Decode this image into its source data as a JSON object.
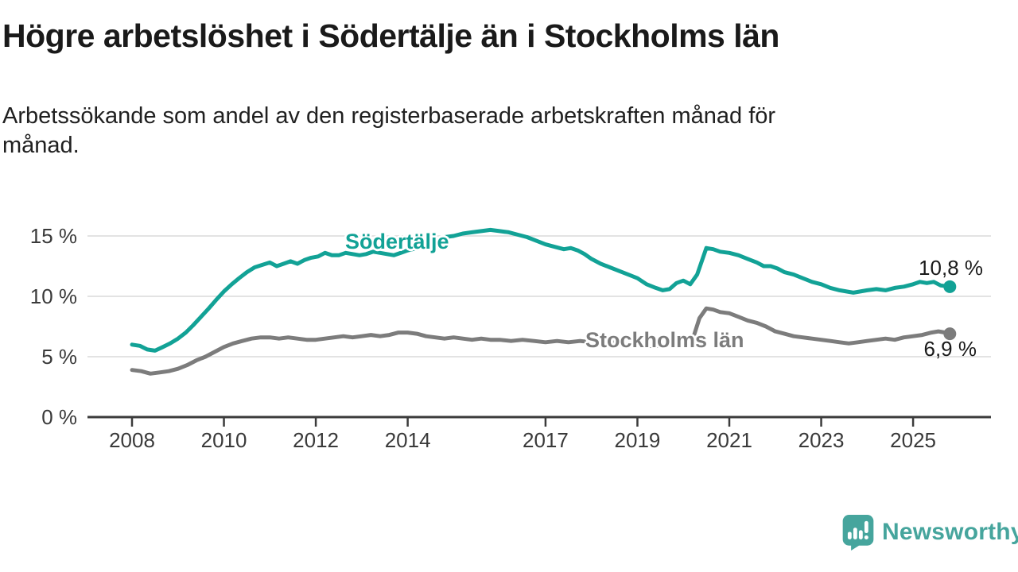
{
  "branding": {
    "name": "Newsworthy",
    "logo_icon": "speech-bubble-bar-chart-icon",
    "color": "#46a59d"
  },
  "chart_data": {
    "type": "line",
    "title": "Högre arbetslöshet i Södertälje än i Stockholms län",
    "subtitle_lines": [
      "Arbetssökande som andel av den registerbaserade arbetskraften månad för",
      "månad."
    ],
    "unit": "%",
    "grid": true,
    "legend": "inline-labels",
    "x_axis": {
      "range": [
        2007.05,
        2026.7
      ],
      "ticks": [
        {
          "value": 2008,
          "label": "2008"
        },
        {
          "value": 2010,
          "label": "2010"
        },
        {
          "value": 2012,
          "label": "2012"
        },
        {
          "value": 2014,
          "label": "2014"
        },
        {
          "value": 2017,
          "label": "2017"
        },
        {
          "value": 2019,
          "label": "2019"
        },
        {
          "value": 2021,
          "label": "2021"
        },
        {
          "value": 2023,
          "label": "2023"
        },
        {
          "value": 2025,
          "label": "2025"
        }
      ]
    },
    "y_axis": {
      "range": [
        0,
        16.5
      ],
      "ticks": [
        {
          "value": 0,
          "label": "0 %"
        },
        {
          "value": 5,
          "label": "5 %"
        },
        {
          "value": 10,
          "label": "10 %"
        },
        {
          "value": 15,
          "label": "15 %"
        }
      ]
    },
    "series": [
      {
        "name": "Södertälje",
        "color": "#12a296",
        "end_value": 10.8,
        "end_label": "10,8 %",
        "points": [
          [
            2008.0,
            6.0
          ],
          [
            2008.17,
            5.9
          ],
          [
            2008.33,
            5.6
          ],
          [
            2008.5,
            5.5
          ],
          [
            2008.67,
            5.8
          ],
          [
            2008.83,
            6.1
          ],
          [
            2009.0,
            6.5
          ],
          [
            2009.17,
            7.0
          ],
          [
            2009.33,
            7.6
          ],
          [
            2009.5,
            8.3
          ],
          [
            2009.67,
            9.0
          ],
          [
            2009.83,
            9.7
          ],
          [
            2010.0,
            10.4
          ],
          [
            2010.17,
            11.0
          ],
          [
            2010.33,
            11.5
          ],
          [
            2010.5,
            12.0
          ],
          [
            2010.67,
            12.4
          ],
          [
            2010.83,
            12.6
          ],
          [
            2011.0,
            12.8
          ],
          [
            2011.15,
            12.5
          ],
          [
            2011.3,
            12.7
          ],
          [
            2011.45,
            12.9
          ],
          [
            2011.6,
            12.7
          ],
          [
            2011.75,
            13.0
          ],
          [
            2011.9,
            13.2
          ],
          [
            2012.05,
            13.3
          ],
          [
            2012.2,
            13.6
          ],
          [
            2012.35,
            13.4
          ],
          [
            2012.5,
            13.4
          ],
          [
            2012.65,
            13.6
          ],
          [
            2012.8,
            13.5
          ],
          [
            2012.95,
            13.4
          ],
          [
            2013.1,
            13.5
          ],
          [
            2013.25,
            13.7
          ],
          [
            2013.4,
            13.6
          ],
          [
            2013.55,
            13.5
          ],
          [
            2013.7,
            13.4
          ],
          [
            2013.85,
            13.6
          ],
          [
            2014.0,
            13.8
          ],
          [
            2014.2,
            14.0
          ],
          [
            2014.4,
            14.3
          ],
          [
            2014.6,
            14.6
          ],
          [
            2014.8,
            14.9
          ],
          [
            2015.0,
            15.0
          ],
          [
            2015.2,
            15.2
          ],
          [
            2015.4,
            15.3
          ],
          [
            2015.6,
            15.4
          ],
          [
            2015.8,
            15.5
          ],
          [
            2016.0,
            15.4
          ],
          [
            2016.2,
            15.3
          ],
          [
            2016.4,
            15.1
          ],
          [
            2016.6,
            14.9
          ],
          [
            2016.8,
            14.6
          ],
          [
            2017.0,
            14.3
          ],
          [
            2017.2,
            14.1
          ],
          [
            2017.4,
            13.9
          ],
          [
            2017.55,
            14.0
          ],
          [
            2017.7,
            13.8
          ],
          [
            2017.85,
            13.5
          ],
          [
            2018.0,
            13.1
          ],
          [
            2018.2,
            12.7
          ],
          [
            2018.4,
            12.4
          ],
          [
            2018.6,
            12.1
          ],
          [
            2018.8,
            11.8
          ],
          [
            2019.0,
            11.5
          ],
          [
            2019.2,
            11.0
          ],
          [
            2019.4,
            10.7
          ],
          [
            2019.55,
            10.5
          ],
          [
            2019.7,
            10.6
          ],
          [
            2019.85,
            11.1
          ],
          [
            2020.0,
            11.3
          ],
          [
            2020.15,
            11.0
          ],
          [
            2020.3,
            11.8
          ],
          [
            2020.5,
            14.0
          ],
          [
            2020.65,
            13.9
          ],
          [
            2020.8,
            13.7
          ],
          [
            2021.0,
            13.6
          ],
          [
            2021.2,
            13.4
          ],
          [
            2021.4,
            13.1
          ],
          [
            2021.6,
            12.8
          ],
          [
            2021.75,
            12.5
          ],
          [
            2021.9,
            12.5
          ],
          [
            2022.05,
            12.3
          ],
          [
            2022.2,
            12.0
          ],
          [
            2022.4,
            11.8
          ],
          [
            2022.6,
            11.5
          ],
          [
            2022.8,
            11.2
          ],
          [
            2023.0,
            11.0
          ],
          [
            2023.2,
            10.7
          ],
          [
            2023.4,
            10.5
          ],
          [
            2023.55,
            10.4
          ],
          [
            2023.7,
            10.3
          ],
          [
            2023.85,
            10.4
          ],
          [
            2024.0,
            10.5
          ],
          [
            2024.2,
            10.6
          ],
          [
            2024.4,
            10.5
          ],
          [
            2024.6,
            10.7
          ],
          [
            2024.8,
            10.8
          ],
          [
            2025.0,
            11.0
          ],
          [
            2025.15,
            11.2
          ],
          [
            2025.3,
            11.1
          ],
          [
            2025.45,
            11.2
          ],
          [
            2025.6,
            10.9
          ],
          [
            2025.8,
            10.8
          ]
        ]
      },
      {
        "name": "Stockholms län",
        "color": "#7c7c7c",
        "end_value": 6.9,
        "end_label": "6,9 %",
        "points": [
          [
            2008.0,
            3.9
          ],
          [
            2008.2,
            3.8
          ],
          [
            2008.4,
            3.6
          ],
          [
            2008.6,
            3.7
          ],
          [
            2008.8,
            3.8
          ],
          [
            2009.0,
            4.0
          ],
          [
            2009.2,
            4.3
          ],
          [
            2009.4,
            4.7
          ],
          [
            2009.6,
            5.0
          ],
          [
            2009.8,
            5.4
          ],
          [
            2010.0,
            5.8
          ],
          [
            2010.2,
            6.1
          ],
          [
            2010.4,
            6.3
          ],
          [
            2010.6,
            6.5
          ],
          [
            2010.8,
            6.6
          ],
          [
            2011.0,
            6.6
          ],
          [
            2011.2,
            6.5
          ],
          [
            2011.4,
            6.6
          ],
          [
            2011.6,
            6.5
          ],
          [
            2011.8,
            6.4
          ],
          [
            2012.0,
            6.4
          ],
          [
            2012.2,
            6.5
          ],
          [
            2012.4,
            6.6
          ],
          [
            2012.6,
            6.7
          ],
          [
            2012.8,
            6.6
          ],
          [
            2013.0,
            6.7
          ],
          [
            2013.2,
            6.8
          ],
          [
            2013.4,
            6.7
          ],
          [
            2013.6,
            6.8
          ],
          [
            2013.8,
            7.0
          ],
          [
            2014.0,
            7.0
          ],
          [
            2014.2,
            6.9
          ],
          [
            2014.4,
            6.7
          ],
          [
            2014.6,
            6.6
          ],
          [
            2014.8,
            6.5
          ],
          [
            2015.0,
            6.6
          ],
          [
            2015.2,
            6.5
          ],
          [
            2015.4,
            6.4
          ],
          [
            2015.6,
            6.5
          ],
          [
            2015.8,
            6.4
          ],
          [
            2016.0,
            6.4
          ],
          [
            2016.25,
            6.3
          ],
          [
            2016.5,
            6.4
          ],
          [
            2016.75,
            6.3
          ],
          [
            2017.0,
            6.2
          ],
          [
            2017.25,
            6.3
          ],
          [
            2017.5,
            6.2
          ],
          [
            2017.75,
            6.3
          ],
          [
            2018.0,
            6.2
          ],
          [
            2018.25,
            6.1
          ],
          [
            2018.5,
            6.2
          ],
          [
            2018.75,
            6.0
          ],
          [
            2019.0,
            6.0
          ],
          [
            2019.25,
            5.9
          ],
          [
            2019.5,
            5.9
          ],
          [
            2019.75,
            6.0
          ],
          [
            2019.9,
            6.1
          ],
          [
            2020.05,
            6.0
          ],
          [
            2020.2,
            6.4
          ],
          [
            2020.35,
            8.2
          ],
          [
            2020.5,
            9.0
          ],
          [
            2020.65,
            8.9
          ],
          [
            2020.8,
            8.7
          ],
          [
            2021.0,
            8.6
          ],
          [
            2021.2,
            8.3
          ],
          [
            2021.4,
            8.0
          ],
          [
            2021.6,
            7.8
          ],
          [
            2021.8,
            7.5
          ],
          [
            2022.0,
            7.1
          ],
          [
            2022.2,
            6.9
          ],
          [
            2022.4,
            6.7
          ],
          [
            2022.6,
            6.6
          ],
          [
            2022.8,
            6.5
          ],
          [
            2023.0,
            6.4
          ],
          [
            2023.2,
            6.3
          ],
          [
            2023.4,
            6.2
          ],
          [
            2023.6,
            6.1
          ],
          [
            2023.8,
            6.2
          ],
          [
            2024.0,
            6.3
          ],
          [
            2024.2,
            6.4
          ],
          [
            2024.4,
            6.5
          ],
          [
            2024.6,
            6.4
          ],
          [
            2024.8,
            6.6
          ],
          [
            2025.0,
            6.7
          ],
          [
            2025.2,
            6.8
          ],
          [
            2025.4,
            7.0
          ],
          [
            2025.55,
            7.1
          ],
          [
            2025.7,
            7.0
          ],
          [
            2025.8,
            6.9
          ]
        ]
      }
    ]
  }
}
